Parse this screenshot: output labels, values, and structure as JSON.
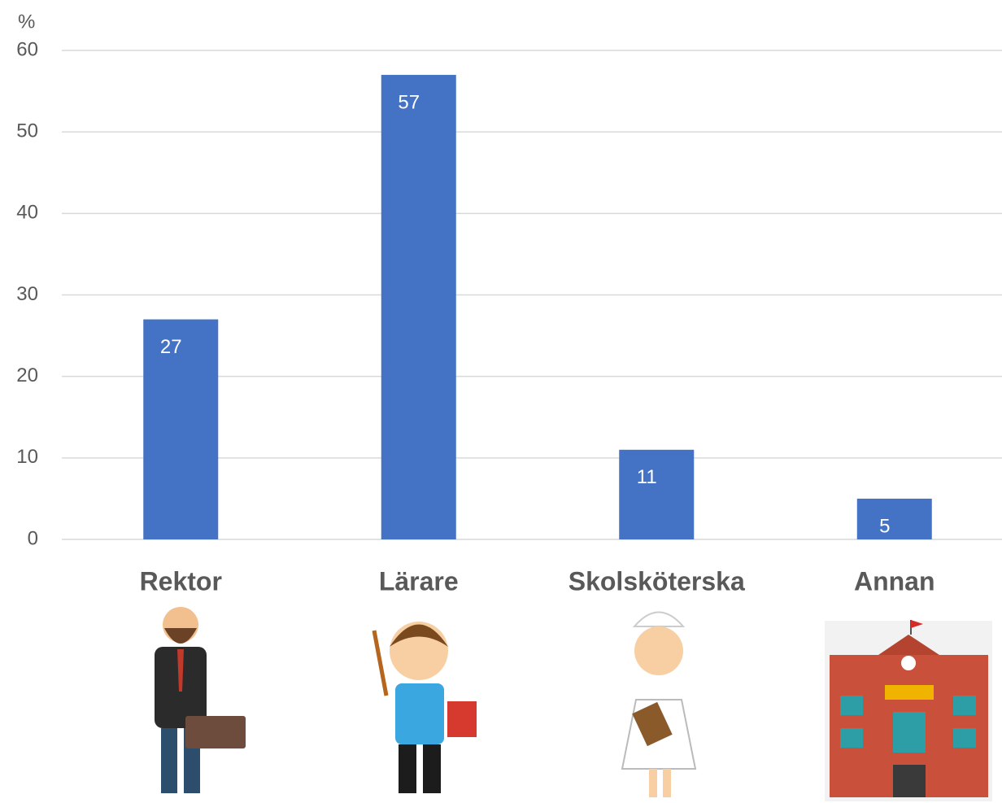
{
  "chart_data": {
    "type": "bar",
    "y_label": "%",
    "categories": [
      "Rektor",
      "Lärare",
      "Skolsköterska",
      "Annan"
    ],
    "values": [
      27,
      57,
      11,
      5
    ],
    "color": "#4472c4",
    "ylim": [
      0,
      60
    ],
    "yticks": [
      0,
      10,
      20,
      30,
      40,
      50,
      60
    ],
    "grid": true
  }
}
